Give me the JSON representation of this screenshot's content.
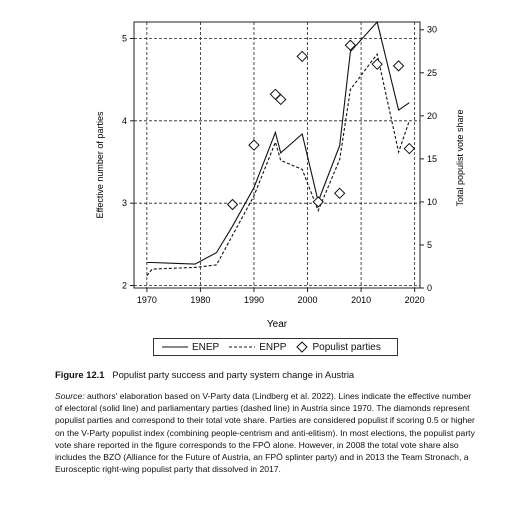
{
  "chart_data": {
    "type": "line",
    "x_ticks": [
      "1970",
      "1980",
      "1990",
      "2000",
      "2010",
      "2020"
    ],
    "xlabel": "Year",
    "ylabel": "Effective number of parties",
    "ylabel_right": "Total populist vote share",
    "ylim": [
      1.97,
      5.2
    ],
    "ylim_right": [
      0,
      30.9
    ],
    "y_ticks": [
      "2",
      "3",
      "4",
      "5"
    ],
    "y_ticks_right": [
      "0",
      "5",
      "10",
      "15",
      "20",
      "25",
      "30"
    ],
    "grid": "dashed, major ticks",
    "series": [
      {
        "name": "ENEP",
        "style": "solid",
        "axis": "left",
        "x": [
          1970,
          1971,
          1975,
          1979,
          1983,
          1986,
          1990,
          1994,
          1995,
          1999,
          2002,
          2006,
          2008,
          2013,
          2017,
          2019
        ],
        "y": [
          2.28,
          2.28,
          2.27,
          2.26,
          2.4,
          2.72,
          3.19,
          3.86,
          3.61,
          3.84,
          3.02,
          3.7,
          4.84,
          5.2,
          4.13,
          4.22
        ]
      },
      {
        "name": "ENPP",
        "style": "dashed",
        "axis": "left",
        "x": [
          1970,
          1971,
          1975,
          1979,
          1983,
          1986,
          1990,
          1994,
          1995,
          1999,
          2002,
          2006,
          2008,
          2013,
          2017,
          2019
        ],
        "y": [
          2.12,
          2.2,
          2.21,
          2.22,
          2.25,
          2.61,
          3.09,
          3.74,
          3.52,
          3.41,
          2.91,
          3.53,
          4.38,
          4.81,
          3.62,
          4.0
        ]
      },
      {
        "name": "Populist parties",
        "style": "diamond",
        "axis": "right",
        "x": [
          1986,
          1990,
          1994,
          1995,
          1999,
          2002,
          2006,
          2008,
          2013,
          2017,
          2019
        ],
        "y": [
          9.7,
          16.6,
          22.5,
          21.9,
          26.9,
          10.0,
          11.0,
          28.2,
          26.0,
          25.8,
          16.2
        ]
      }
    ]
  },
  "legend": {
    "enep": "ENEP",
    "enpp": "ENPP",
    "populist": "Populist parties"
  },
  "caption": {
    "figure": "Figure 12.1",
    "title": "Populist party success and party system change in Austria"
  },
  "source": {
    "label": "Source:",
    "text": " authors' elaboration based on V-Party data (Lindberg et al. 2022). Lines indicate the effective number of electoral (solid line) and parliamentary parties (dashed line) in Austria since 1970. The diamonds represent populist parties and correspond to their total vote share. Parties are considered populist if scoring 0.5 or higher on the V-Party populist index (combining people-centrism and anti-elitism). In most elections, the populist party vote share reported in the figure corresponds to the FPÖ alone. However, in 2008 the total vote share also includes the BZÖ (Alliance for the Future of Austria, an FPÖ splinter party) and in 2013 the Team Stronach, a Eurosceptic right-wing populist party that dissolved in 2017."
  }
}
